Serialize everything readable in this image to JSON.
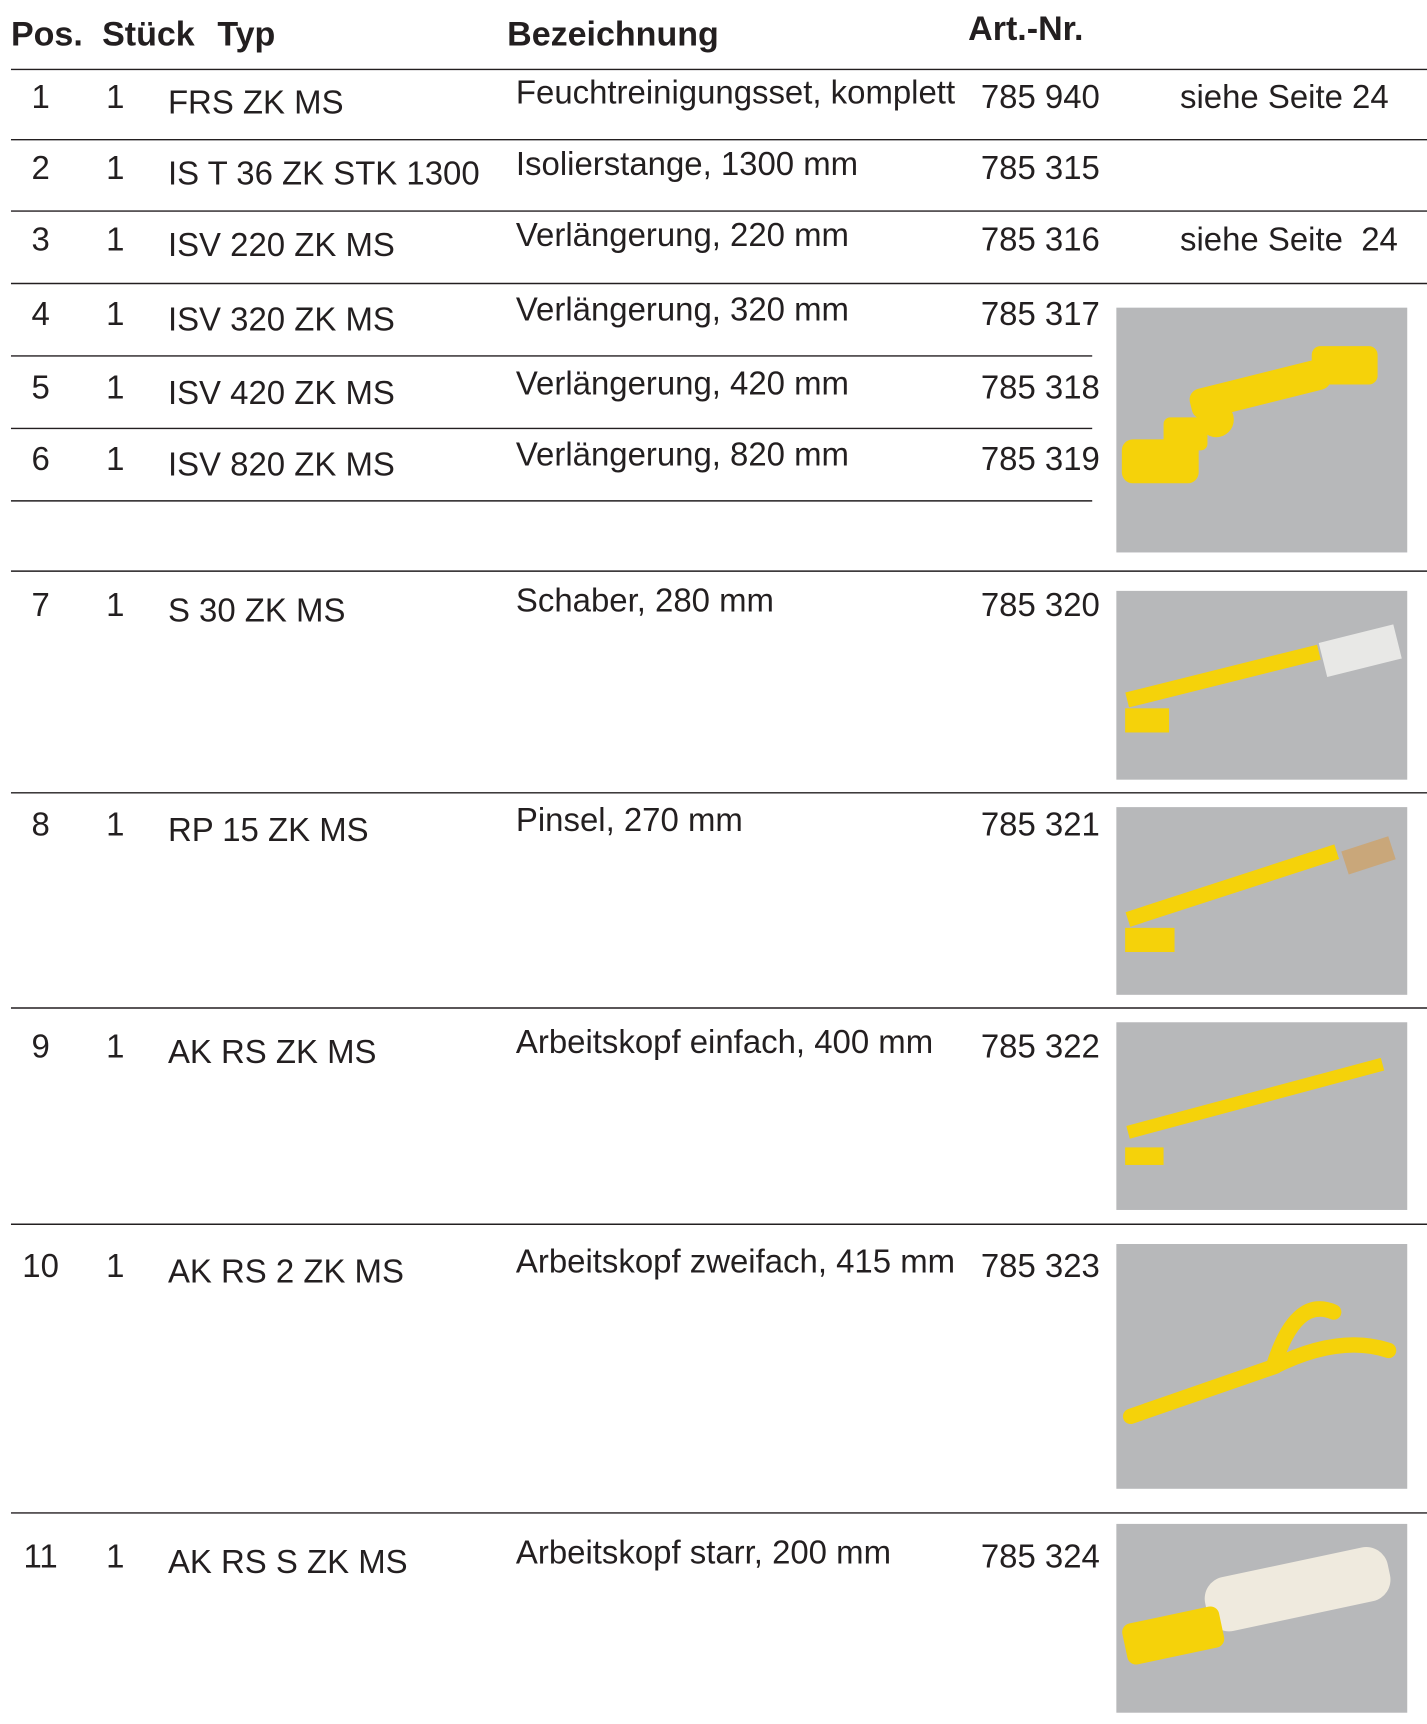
{
  "header": {
    "pos": "Pos.",
    "qty": "Stück",
    "type": "Typ",
    "description": "Bezeichnung",
    "article": "Art.-Nr."
  },
  "rows": [
    {
      "pos": "1",
      "qty": "1",
      "type": "FRS ZK MS",
      "description": "Feuchtreinigungsset, komplett",
      "article": "785 940",
      "note": "siehe Seite 24"
    },
    {
      "pos": "2",
      "qty": "1",
      "type": "IS T 36 ZK STK 1300",
      "description": "Isolierstange, 1300 mm",
      "article": "785 315"
    },
    {
      "pos": "3",
      "qty": "1",
      "type": "ISV 220 ZK MS",
      "description": "Verlängerung, 220 mm",
      "article": "785 316",
      "note": "siehe Seite  24"
    },
    {
      "pos": "4",
      "qty": "1",
      "type": "ISV 320 ZK MS",
      "description": "Verlängerung, 320 mm",
      "article": "785 317"
    },
    {
      "pos": "5",
      "qty": "1",
      "type": "ISV 420 ZK MS",
      "description": "Verlängerung, 420 mm",
      "article": "785 318"
    },
    {
      "pos": "6",
      "qty": "1",
      "type": "ISV 820 ZK MS",
      "description": "Verlängerung, 820 mm",
      "article": "785 319"
    },
    {
      "pos": "7",
      "qty": "1",
      "type": "S 30 ZK MS",
      "description": "Schaber, 280 mm",
      "article": "785 320"
    },
    {
      "pos": "8",
      "qty": "1",
      "type": "RP 15 ZK MS",
      "description": "Pinsel, 270 mm",
      "article": "785 321"
    },
    {
      "pos": "9",
      "qty": "1",
      "type": "AK RS ZK MS",
      "description": "Arbeitskopf einfach, 400 mm",
      "article": "785 322"
    },
    {
      "pos": "10",
      "qty": "1",
      "type": "AK RS 2 ZK MS",
      "description": "Arbeitskopf zweifach, 415 mm",
      "article": "785 323"
    },
    {
      "pos": "11",
      "qty": "1",
      "type": "AK RS S ZK MS",
      "description": "Arbeitskopf starr, 200 mm",
      "article": "785 324"
    }
  ]
}
